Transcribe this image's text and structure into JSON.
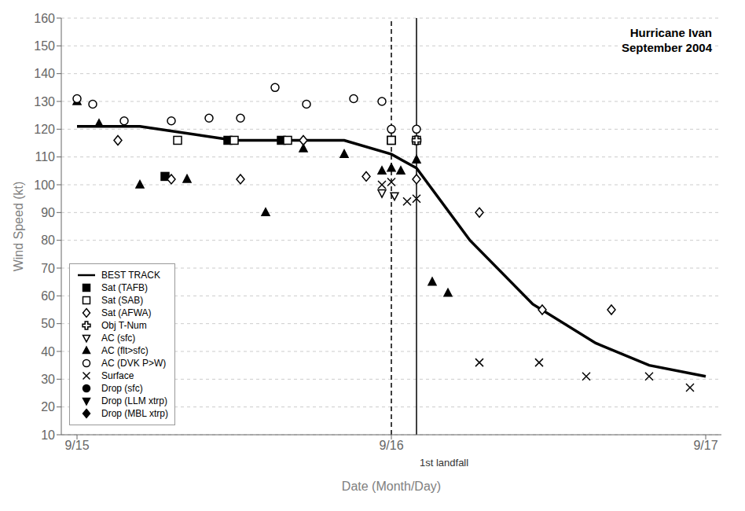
{
  "chart_data": {
    "type": "scatter",
    "title": "Hurricane Ivan\nSeptember 2004",
    "x_label": "Date (Month/Day)",
    "y_label": "Wind Speed (kt)",
    "xlim": [
      -0.05,
      2.05
    ],
    "xticks": [
      {
        "value": 0.0,
        "label": "9/15"
      },
      {
        "value": 1.0,
        "label": "9/16"
      },
      {
        "value": 2.0,
        "label": "9/17"
      }
    ],
    "ylim": [
      10,
      160
    ],
    "yticks": [
      10,
      20,
      30,
      40,
      50,
      60,
      70,
      80,
      90,
      100,
      110,
      120,
      130,
      140,
      150,
      160
    ],
    "grid": true,
    "legend": "lower left",
    "series": [
      {
        "name": "BEST TRACK",
        "type": "line",
        "color": "black",
        "line_style": "solid",
        "x": [
          0.0,
          0.2,
          0.5,
          0.7,
          0.85,
          1.0,
          1.08,
          1.25,
          1.45,
          1.65,
          1.82,
          2.0
        ],
        "values": [
          121,
          121,
          116,
          116,
          116,
          111,
          106,
          80,
          57,
          43,
          35,
          31
        ]
      },
      {
        "name": "Sat (TAFB)",
        "type": "scatter",
        "color": "black",
        "marker": "square",
        "x": [
          0.28,
          0.48,
          0.65,
          1.0
        ],
        "values": [
          103,
          116,
          116,
          116
        ]
      },
      {
        "name": "Sat (SAB)",
        "type": "scatter",
        "color": "black",
        "marker": "square-open",
        "x": [
          0.32,
          0.5,
          0.67,
          1.0,
          1.08
        ],
        "values": [
          116,
          116,
          116,
          116,
          116
        ]
      },
      {
        "name": "Sat (AFWA)",
        "type": "scatter",
        "color": "black",
        "marker": "diamond-open",
        "x": [
          0.13,
          0.3,
          0.52,
          0.72,
          0.92,
          1.08,
          1.28,
          1.48,
          1.7
        ],
        "values": [
          116,
          102,
          102,
          116,
          103,
          102,
          90,
          55,
          55
        ]
      },
      {
        "name": "Obj T-Num",
        "type": "scatter",
        "color": "black",
        "marker": "plus-open",
        "x": [
          1.08
        ],
        "values": [
          116
        ]
      },
      {
        "name": "AC (sfc)",
        "type": "scatter",
        "color": "black",
        "marker": "triangle-down-open",
        "x": [
          0.97,
          1.01
        ],
        "values": [
          97,
          96
        ]
      },
      {
        "name": "AC (flt>sfc)",
        "type": "scatter",
        "color": "black",
        "marker": "triangle-up",
        "x": [
          0.0,
          0.07,
          0.2,
          0.35,
          0.6,
          0.72,
          0.85,
          0.97,
          1.0,
          1.03,
          1.08,
          1.13,
          1.18
        ],
        "values": [
          130,
          122,
          100,
          102,
          90,
          113,
          111,
          105,
          106,
          105,
          109,
          65,
          61
        ]
      },
      {
        "name": "AC (DVK P>W)",
        "type": "scatter",
        "color": "black",
        "marker": "circle-open",
        "x": [
          0.0,
          0.05,
          0.15,
          0.3,
          0.42,
          0.52,
          0.63,
          0.73,
          0.88,
          0.97,
          1.0,
          1.08
        ],
        "values": [
          131,
          129,
          123,
          123,
          124,
          124,
          135,
          129,
          131,
          130,
          120,
          120
        ]
      },
      {
        "name": "Surface",
        "type": "scatter",
        "color": "black",
        "marker": "x",
        "x": [
          0.97,
          1.0,
          1.05,
          1.08,
          1.28,
          1.47,
          1.62,
          1.82,
          1.95
        ],
        "values": [
          100,
          101,
          94,
          95,
          36,
          36,
          31,
          31,
          27
        ]
      },
      {
        "name": "Drop (sfc)",
        "type": "scatter",
        "color": "black",
        "marker": "circle",
        "x": [],
        "values": []
      },
      {
        "name": "Drop (LLM xtrp)",
        "type": "scatter",
        "color": "black",
        "marker": "triangle-down",
        "x": [],
        "values": []
      },
      {
        "name": "Drop (MBL xtrp)",
        "type": "scatter",
        "color": "black",
        "marker": "diamond",
        "x": [],
        "values": []
      }
    ],
    "vertical_lines": [
      {
        "x": 1.0,
        "line_style": "dashed"
      },
      {
        "x": 1.08,
        "line_style": "solid"
      }
    ],
    "annotations": [
      {
        "text": "1st landfall",
        "x": 1.09
      }
    ]
  }
}
